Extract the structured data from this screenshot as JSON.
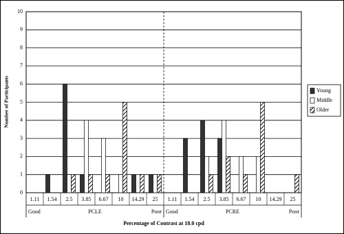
{
  "chart_data": {
    "type": "bar",
    "y_label": "Number of Participants",
    "x_label": "Percentage of Contrast at 18.0 cpd",
    "categories": [
      "1.11",
      "1.54",
      "2.5",
      "3.85",
      "6.67",
      "10",
      "14.29",
      "25",
      "1.11",
      "1.54",
      "2.5",
      "3.85",
      "6.67",
      "10",
      "14.29",
      "25"
    ],
    "groups": [
      {
        "label": "PCLE",
        "start_label": "Good",
        "end_label": "Poor"
      },
      {
        "label": "PCRE",
        "start_label": "Good",
        "end_label": "Poor"
      }
    ],
    "series": [
      {
        "name": "Young",
        "color": "#333333",
        "hatch": false,
        "values": [
          0,
          1,
          6,
          1,
          0,
          0,
          1,
          1,
          0,
          3,
          4,
          3,
          0,
          0,
          0,
          0
        ]
      },
      {
        "name": "Middle",
        "color": "#ffffff",
        "hatch": false,
        "values": [
          0,
          0,
          1,
          4,
          3,
          1,
          0,
          1,
          0,
          0,
          2,
          4,
          2,
          2,
          0,
          0
        ]
      },
      {
        "name": "Older",
        "color": "#000000",
        "hatch": true,
        "values": [
          0,
          0,
          1,
          1,
          1,
          5,
          1,
          1,
          0,
          0,
          1,
          2,
          1,
          5,
          0,
          1
        ]
      }
    ],
    "ylim": [
      0,
      10
    ],
    "yticks": [
      0,
      1,
      2,
      3,
      4,
      5,
      6,
      7,
      8,
      9,
      10
    ],
    "grid": true,
    "legend": "right"
  }
}
